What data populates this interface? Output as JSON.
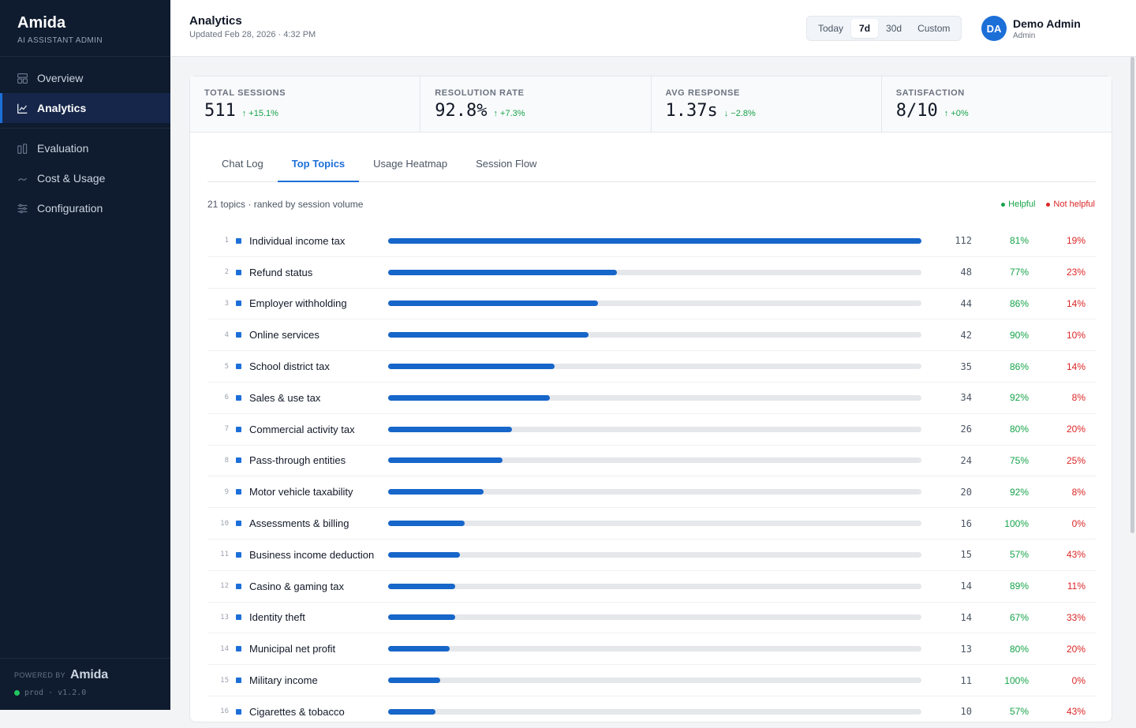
{
  "brand": {
    "name": "Amida",
    "subtitle": "AI ASSISTANT ADMIN"
  },
  "sidebar": {
    "items": [
      {
        "label": "Overview",
        "icon": "layout-icon"
      },
      {
        "label": "Analytics",
        "icon": "chart-line-icon",
        "active": true
      },
      {
        "label": "Evaluation",
        "icon": "bars-icon"
      },
      {
        "label": "Cost & Usage",
        "icon": "trend-icon"
      },
      {
        "label": "Configuration",
        "icon": "sliders-icon"
      }
    ],
    "footer": {
      "powered_by": "POWERED BY",
      "logo": "Amida",
      "env": "prod · v1.2.0"
    }
  },
  "header": {
    "title": "Analytics",
    "updated": "Updated Feb 28, 2026 · 4:32 PM",
    "ranges": [
      "Today",
      "7d",
      "30d",
      "Custom"
    ],
    "active_range": "7d",
    "user": {
      "initials": "DA",
      "name": "Demo Admin",
      "role": "Admin"
    }
  },
  "stats": [
    {
      "label": "TOTAL SESSIONS",
      "value": "511",
      "delta": "↑ +15.1%"
    },
    {
      "label": "RESOLUTION RATE",
      "value": "92.8%",
      "delta": "↑ +7.3%"
    },
    {
      "label": "AVG RESPONSE",
      "value": "1.37s",
      "delta": "↓ −2.8%"
    },
    {
      "label": "SATISFACTION",
      "value": "8/10",
      "delta": "↑ +0%"
    }
  ],
  "tabs": [
    "Chat Log",
    "Top Topics",
    "Usage Heatmap",
    "Session Flow"
  ],
  "active_tab": "Top Topics",
  "topics": {
    "meta": "21 topics · ranked by session volume",
    "legend": {
      "helpful": "Helpful",
      "not_helpful": "Not helpful"
    },
    "max_count": 112,
    "rows": [
      {
        "rank": "1",
        "name": "Individual income tax",
        "count": 112,
        "helpful": "81%",
        "not_helpful": "19%"
      },
      {
        "rank": "2",
        "name": "Refund status",
        "count": 48,
        "helpful": "77%",
        "not_helpful": "23%"
      },
      {
        "rank": "3",
        "name": "Employer withholding",
        "count": 44,
        "helpful": "86%",
        "not_helpful": "14%"
      },
      {
        "rank": "4",
        "name": "Online services",
        "count": 42,
        "helpful": "90%",
        "not_helpful": "10%"
      },
      {
        "rank": "5",
        "name": "School district tax",
        "count": 35,
        "helpful": "86%",
        "not_helpful": "14%"
      },
      {
        "rank": "6",
        "name": "Sales & use tax",
        "count": 34,
        "helpful": "92%",
        "not_helpful": "8%"
      },
      {
        "rank": "7",
        "name": "Commercial activity tax",
        "count": 26,
        "helpful": "80%",
        "not_helpful": "20%"
      },
      {
        "rank": "8",
        "name": "Pass-through entities",
        "count": 24,
        "helpful": "75%",
        "not_helpful": "25%"
      },
      {
        "rank": "9",
        "name": "Motor vehicle taxability",
        "count": 20,
        "helpful": "92%",
        "not_helpful": "8%"
      },
      {
        "rank": "10",
        "name": "Assessments & billing",
        "count": 16,
        "helpful": "100%",
        "not_helpful": "0%"
      },
      {
        "rank": "11",
        "name": "Business income deduction",
        "count": 15,
        "helpful": "57%",
        "not_helpful": "43%"
      },
      {
        "rank": "12",
        "name": "Casino & gaming tax",
        "count": 14,
        "helpful": "89%",
        "not_helpful": "11%"
      },
      {
        "rank": "13",
        "name": "Identity theft",
        "count": 14,
        "helpful": "67%",
        "not_helpful": "33%"
      },
      {
        "rank": "14",
        "name": "Municipal net profit",
        "count": 13,
        "helpful": "80%",
        "not_helpful": "20%"
      },
      {
        "rank": "15",
        "name": "Military income",
        "count": 11,
        "helpful": "100%",
        "not_helpful": "0%"
      },
      {
        "rank": "16",
        "name": "Cigarettes & tobacco",
        "count": 10,
        "helpful": "57%",
        "not_helpful": "43%"
      }
    ]
  },
  "colors": {
    "accent": "#1d6fd8",
    "bar": "#1766c9",
    "helpful": "#16a34a",
    "not_helpful": "#dc2626",
    "sidebar_bg": "#0f1b2e"
  }
}
